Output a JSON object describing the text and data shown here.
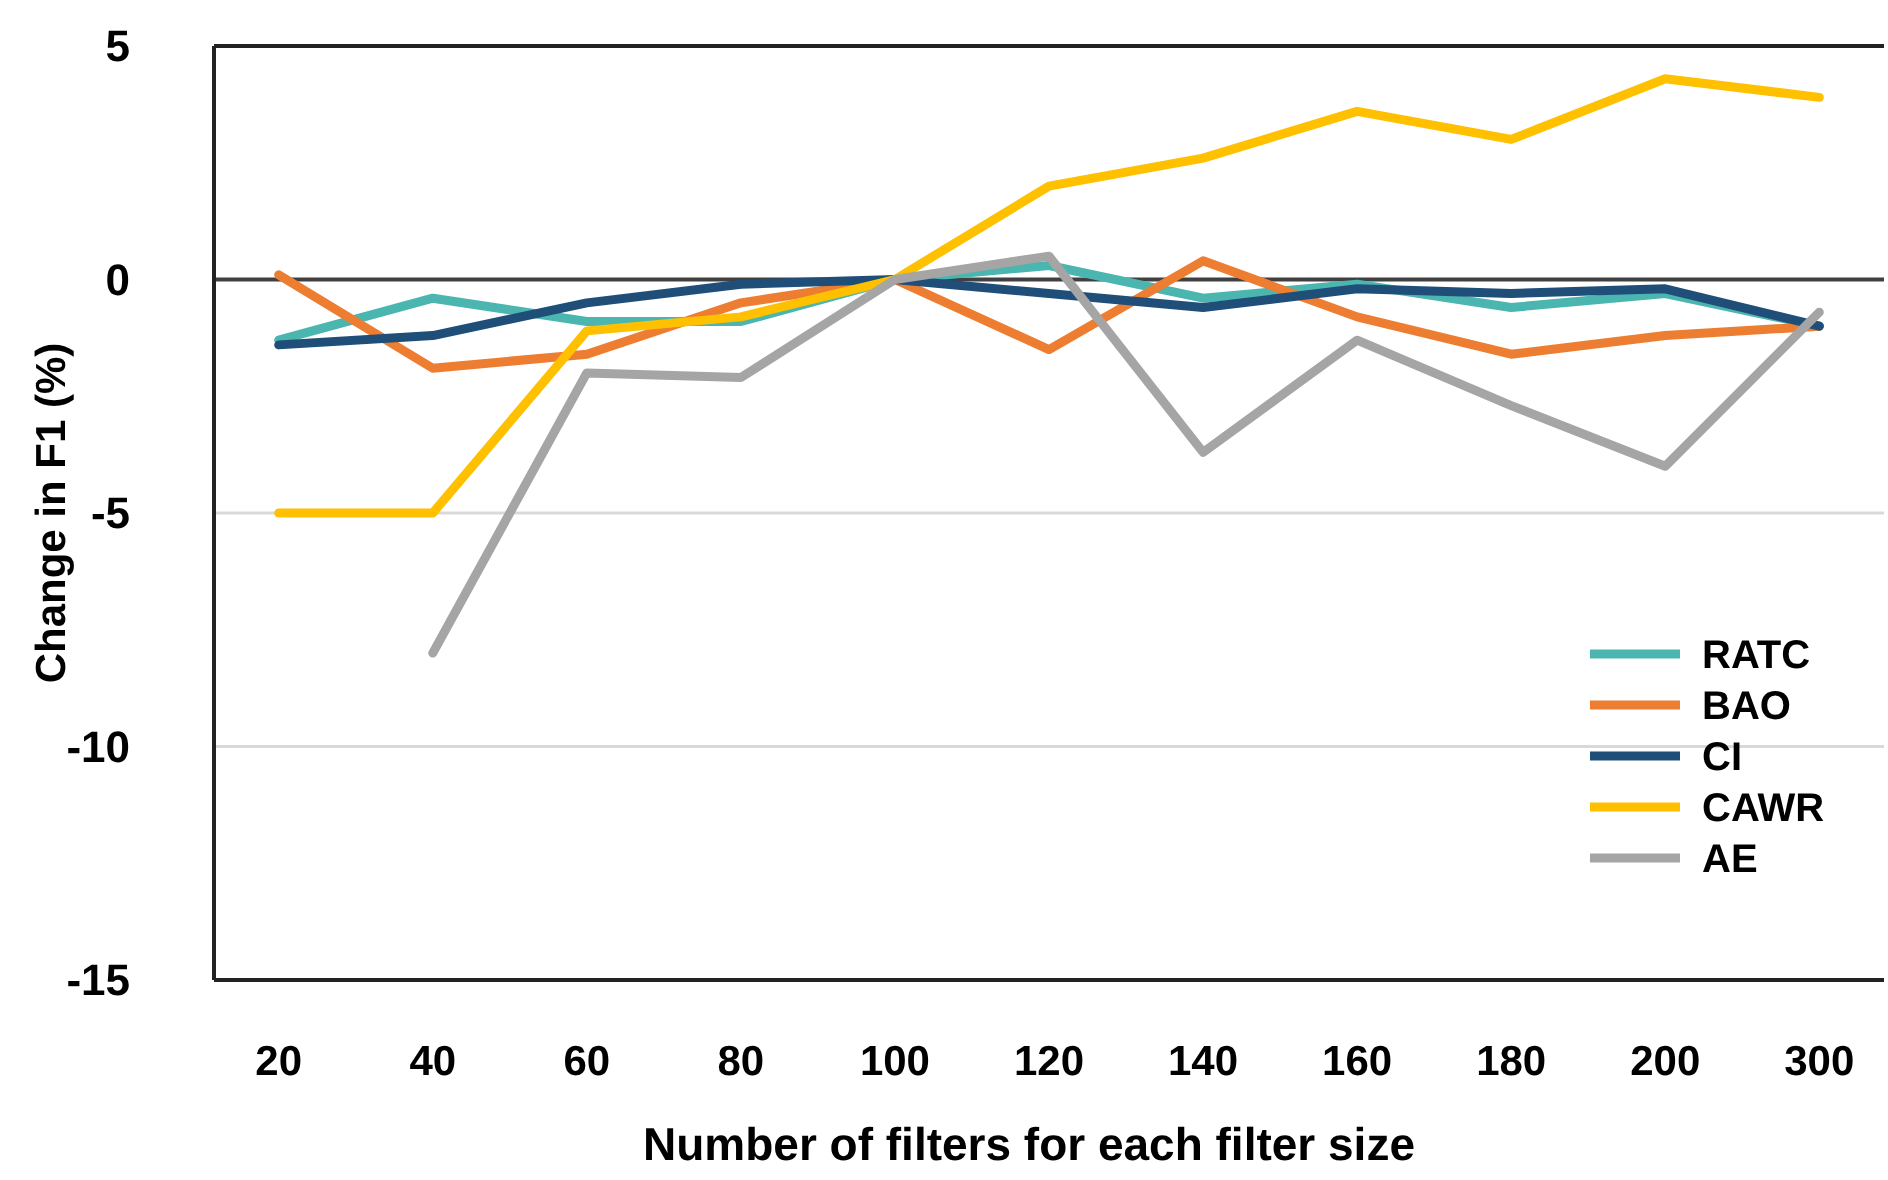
{
  "chart_data": {
    "type": "line",
    "xlabel": "Number of filters for each filter size",
    "ylabel": "Change in F1 (%)",
    "categories": [
      "20",
      "40",
      "60",
      "80",
      "100",
      "120",
      "140",
      "160",
      "180",
      "200",
      "300"
    ],
    "series": [
      {
        "name": "RATC",
        "color": "#4bb5b0",
        "values": [
          -1.3,
          -0.4,
          -0.9,
          -0.9,
          0,
          0.3,
          -0.4,
          -0.1,
          -0.6,
          -0.3,
          -1.0
        ]
      },
      {
        "name": "BAO",
        "color": "#ed7d31",
        "values": [
          0.1,
          -1.9,
          -1.6,
          -0.5,
          0,
          -1.5,
          0.4,
          -0.8,
          -1.6,
          -1.2,
          -1.0
        ]
      },
      {
        "name": "CI",
        "color": "#1f4e79",
        "values": [
          -1.4,
          -1.2,
          -0.5,
          -0.1,
          0,
          -0.3,
          -0.6,
          -0.2,
          -0.3,
          -0.2,
          -1.0
        ]
      },
      {
        "name": "CAWR",
        "color": "#ffc000",
        "values": [
          -5,
          -5,
          -1.1,
          -0.8,
          0,
          2.0,
          2.6,
          3.6,
          3.0,
          4.3,
          3.9
        ]
      },
      {
        "name": "AE",
        "color": "#a5a5a5",
        "values": [
          null,
          -8,
          -2.0,
          -2.1,
          0,
          0.5,
          -3.7,
          -1.3,
          -2.7,
          -4.0,
          -0.7
        ]
      }
    ],
    "ylim": [
      -15,
      5
    ],
    "yticks": [
      -15,
      -10,
      -5,
      0,
      5
    ],
    "grid": "y",
    "legend": "bottom right",
    "marker": "none",
    "line_style": "solid",
    "ref_lines": [
      {
        "axis": "y",
        "value": 0,
        "color": "#404040"
      }
    ]
  }
}
